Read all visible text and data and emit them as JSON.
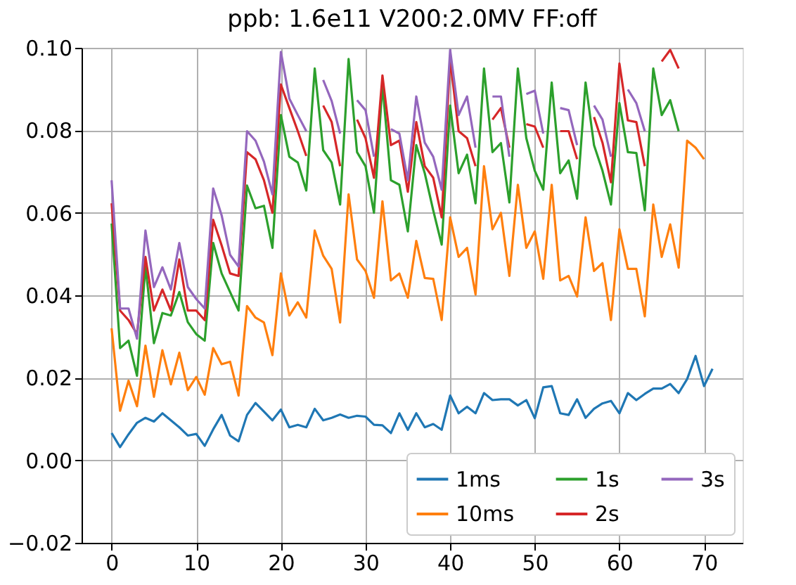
{
  "chart_data": {
    "type": "line",
    "title": "ppb: 1.6e11 V200:2.0MV FF:off",
    "x": [
      0,
      1,
      2,
      3,
      4,
      5,
      6,
      7,
      8,
      9,
      10,
      11,
      12,
      13,
      14,
      15,
      16,
      17,
      18,
      19,
      20,
      21,
      22,
      23,
      24,
      25,
      26,
      27,
      28,
      29,
      30,
      31,
      32,
      33,
      34,
      35,
      36,
      37,
      38,
      39,
      40,
      41,
      42,
      43,
      44,
      45,
      46,
      47,
      48,
      49,
      50,
      51,
      52,
      53,
      54,
      55,
      56,
      57,
      58,
      59,
      60,
      61,
      62,
      63,
      64,
      65,
      66,
      67,
      68,
      69,
      70,
      71
    ],
    "xlim": [
      -3.55,
      74.55
    ],
    "xticks": [
      0,
      10,
      20,
      30,
      40,
      50,
      60,
      70
    ],
    "ylim": [
      -0.02,
      0.1
    ],
    "yticks": [
      {
        "value": -0.02,
        "label": "−0.02"
      },
      {
        "value": 0,
        "label": "0.00"
      },
      {
        "value": 0.02,
        "label": "0.02"
      },
      {
        "value": 0.04,
        "label": "0.04"
      },
      {
        "value": 0.06,
        "label": "0.06"
      },
      {
        "value": 0.08,
        "label": "0.08"
      },
      {
        "value": 0.1,
        "label": "0.10"
      }
    ],
    "grid": true,
    "legend": "bottom right",
    "line_style": "solid",
    "marker": "none",
    "series": [
      {
        "name": "1ms",
        "color": "#1f77b4",
        "values": [
          0.0066,
          0.0032,
          0.0063,
          0.0091,
          0.0103,
          0.0094,
          0.0114,
          0.0097,
          0.008,
          0.006,
          0.0064,
          0.0035,
          0.0075,
          0.011,
          0.006,
          0.0046,
          0.011,
          0.0139,
          0.0118,
          0.0097,
          0.0123,
          0.008,
          0.0086,
          0.008,
          0.0125,
          0.0097,
          0.0103,
          0.0111,
          0.0103,
          0.0108,
          0.0106,
          0.0086,
          0.0085,
          0.0066,
          0.0114,
          0.0074,
          0.0114,
          0.008,
          0.0088,
          0.0074,
          0.0157,
          0.0114,
          0.013,
          0.0114,
          0.0163,
          0.0146,
          0.0148,
          0.0148,
          0.0133,
          0.0146,
          0.0102,
          0.0177,
          0.018,
          0.0114,
          0.011,
          0.0148,
          0.0103,
          0.0125,
          0.0138,
          0.0144,
          0.0114,
          0.0163,
          0.0146,
          0.0161,
          0.0174,
          0.0174,
          0.0185,
          0.0163,
          0.0197,
          0.0253,
          0.018,
          0.0222
        ]
      },
      {
        "name": "10ms",
        "color": "#ff7f0e",
        "values": [
          0.032,
          0.012,
          0.0193,
          0.0131,
          0.0278,
          0.0154,
          0.0267,
          0.0184,
          0.0261,
          0.017,
          0.0202,
          0.0159,
          0.0272,
          0.0233,
          0.0239,
          0.0157,
          0.0374,
          0.0346,
          0.0334,
          0.0255,
          0.0453,
          0.0351,
          0.0383,
          0.0346,
          0.0557,
          0.0496,
          0.0464,
          0.0334,
          0.0645,
          0.0487,
          0.0459,
          0.0394,
          0.0628,
          0.0436,
          0.0453,
          0.0394,
          0.0532,
          0.0442,
          0.044,
          0.034,
          0.0589,
          0.0493,
          0.0515,
          0.0402,
          0.0713,
          0.056,
          0.06,
          0.0447,
          0.0668,
          0.0515,
          0.0555,
          0.044,
          0.0668,
          0.0436,
          0.0447,
          0.0397,
          0.0589,
          0.0459,
          0.0478,
          0.034,
          0.056,
          0.0464,
          0.0464,
          0.0349,
          0.062,
          0.0493,
          0.0572,
          0.0467,
          0.0775,
          0.0758,
          0.073,
          null
        ]
      },
      {
        "name": "1s",
        "color": "#2ca02c",
        "values": [
          0.0574,
          0.0272,
          0.029,
          0.0205,
          0.047,
          0.0284,
          0.0357,
          0.0351,
          0.0408,
          0.0335,
          0.0306,
          0.029,
          0.0527,
          0.0453,
          0.0408,
          0.0363,
          0.0666,
          0.0611,
          0.0617,
          0.0515,
          0.0837,
          0.0736,
          0.0722,
          0.0654,
          0.095,
          0.0752,
          0.0722,
          0.062,
          0.0973,
          0.0747,
          0.0713,
          0.06,
          0.0911,
          0.0679,
          0.0668,
          0.0555,
          0.0764,
          0.0696,
          0.0606,
          0.0523,
          0.086,
          0.0696,
          0.0741,
          0.0623,
          0.095,
          0.0747,
          0.0769,
          0.0625,
          0.095,
          0.0781,
          0.0702,
          0.0656,
          0.0916,
          0.0696,
          0.0727,
          0.0634,
          0.0916,
          0.0764,
          0.0702,
          0.062,
          0.0866,
          0.0747,
          0.0745,
          0.0606,
          0.095,
          0.0837,
          0.0873,
          0.0798,
          null,
          null,
          null,
          null
        ]
      },
      {
        "name": "2s",
        "color": "#d62728",
        "values": [
          0.0623,
          0.0363,
          0.034,
          0.0306,
          0.0493,
          0.0363,
          0.0414,
          0.0363,
          0.0487,
          0.0363,
          0.0363,
          0.034,
          0.0583,
          0.0521,
          0.0453,
          0.0447,
          0.0747,
          0.073,
          0.0679,
          0.06,
          0.0911,
          0.0854,
          0.0798,
          0.0738,
          null,
          0.086,
          0.082,
          0.0713,
          null,
          0.0826,
          0.0781,
          0.0685,
          0.0933,
          0.0764,
          0.0775,
          0.0651,
          0.082,
          0.0713,
          0.0685,
          0.0589,
          0.0973,
          0.0798,
          0.0781,
          0.0713,
          null,
          0.0826,
          0.0854,
          0.0758,
          null,
          0.0815,
          0.0809,
          0.0758,
          null,
          0.0798,
          0.0798,
          0.073,
          null,
          0.0832,
          0.077,
          0.0674,
          0.0962,
          0.0824,
          0.082,
          0.0713,
          null,
          0.0967,
          0.0995,
          0.095,
          null,
          null,
          null,
          null
        ]
      },
      {
        "name": "3s",
        "color": "#9467bd",
        "values": [
          0.0679,
          0.0368,
          0.0368,
          0.0295,
          0.0557,
          0.042,
          0.0468,
          0.0414,
          0.0527,
          0.042,
          0.0391,
          0.0368,
          0.0659,
          0.0594,
          0.0498,
          0.047,
          0.0798,
          0.0775,
          0.0724,
          0.0645,
          0.099,
          0.0877,
          0.0837,
          0.0798,
          null,
          0.0922,
          0.0871,
          0.0792,
          null,
          0.0873,
          0.0849,
          0.0736,
          null,
          0.0803,
          0.0792,
          0.0679,
          0.0882,
          0.077,
          0.0736,
          0.0656,
          0.0995,
          0.0837,
          0.0882,
          0.0758,
          null,
          0.0882,
          0.0882,
          0.0736,
          null,
          0.0888,
          0.0896,
          0.0792,
          null,
          0.0854,
          0.0849,
          0.0764,
          null,
          0.086,
          0.0826,
          0.0736,
          null,
          0.0899,
          0.0866,
          0.0798,
          null,
          null,
          null,
          null,
          null,
          null,
          null,
          null
        ]
      }
    ]
  }
}
